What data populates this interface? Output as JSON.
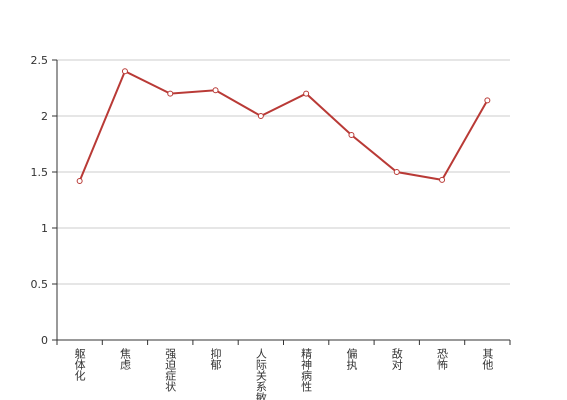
{
  "chart_data": {
    "type": "line",
    "categories": [
      "躯体化",
      "焦虑",
      "强迫症状",
      "抑郁",
      "人际关系敏感",
      "精神病性",
      "偏执",
      "敌对",
      "恐怖",
      "其他"
    ],
    "values": [
      1.42,
      2.4,
      2.2,
      2.23,
      2.0,
      2.2,
      1.83,
      1.5,
      1.43,
      2.14
    ],
    "color": "#b93a36",
    "ylim": [
      0,
      2.5
    ],
    "yticks": [
      0,
      0.5,
      1,
      1.5,
      2,
      2.5
    ],
    "grid": true
  }
}
